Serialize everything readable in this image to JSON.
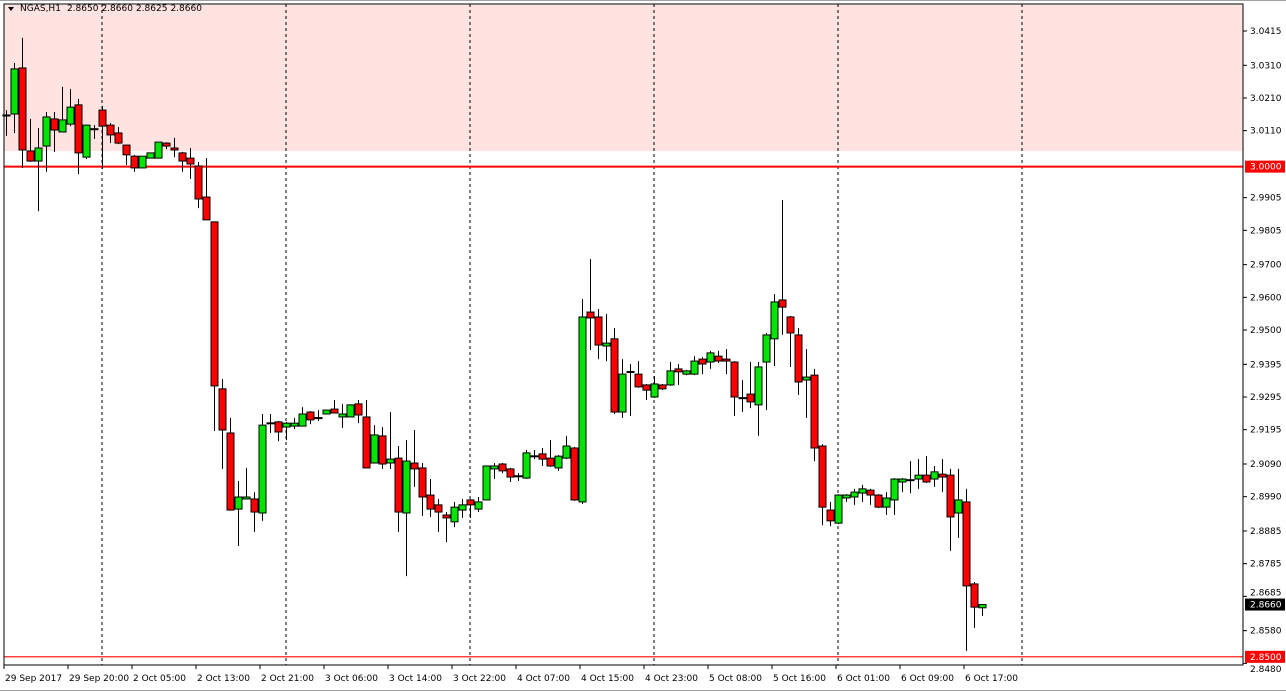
{
  "header": {
    "symbol": "NGAS,H1",
    "open": "2.8650",
    "high": "2.8660",
    "low": "2.8625",
    "close": "2.8660",
    "menu_icon": "triangle-down-icon"
  },
  "colors": {
    "up": "#00e600",
    "down": "#ff0000",
    "zone": "#ffe3e1",
    "level_line": "#ff0000",
    "current_price_bg": "#000000"
  },
  "chart_data": {
    "type": "candlestick",
    "ylim": [
      2.847,
      3.0495
    ],
    "zone": {
      "from": 3.0048,
      "to": 3.0495
    },
    "levels": [
      {
        "price": 3.0,
        "label": "3.0000"
      },
      {
        "price": 2.85,
        "label": "2.8500"
      }
    ],
    "current_price": {
      "price": 2.866,
      "label": "2.8660"
    },
    "y_ticks": [
      "3.0415",
      "3.0310",
      "3.0210",
      "3.0110",
      "2.9905",
      "2.9805",
      "2.9700",
      "2.9600",
      "2.9500",
      "2.9395",
      "2.9295",
      "2.9195",
      "2.9090",
      "2.8990",
      "2.8885",
      "2.8785",
      "2.8685",
      "2.8580",
      "2.8480"
    ],
    "x_labels": [
      {
        "index": 0,
        "label": "29 Sep 2017"
      },
      {
        "index": 8,
        "label": "29 Sep 20:00"
      },
      {
        "index": 16,
        "label": "2 Oct 05:00"
      },
      {
        "index": 24,
        "label": "2 Oct 13:00"
      },
      {
        "index": 32,
        "label": "2 Oct 21:00"
      },
      {
        "index": 40,
        "label": "3 Oct 06:00"
      },
      {
        "index": 48,
        "label": "3 Oct 14:00"
      },
      {
        "index": 56,
        "label": "3 Oct 22:00"
      },
      {
        "index": 64,
        "label": "4 Oct 07:00"
      },
      {
        "index": 72,
        "label": "4 Oct 15:00"
      },
      {
        "index": 80,
        "label": "4 Oct 23:00"
      },
      {
        "index": 88,
        "label": "5 Oct 08:00"
      },
      {
        "index": 96,
        "label": "5 Oct 16:00"
      },
      {
        "index": 104,
        "label": "6 Oct 01:00"
      },
      {
        "index": 112,
        "label": "6 Oct 09:00"
      },
      {
        "index": 120,
        "label": "6 Oct 17:00"
      }
    ],
    "separators": [
      12,
      35,
      58,
      81,
      104,
      127
    ],
    "ohlc": [
      [
        3.0155,
        3.0173,
        3.0094,
        3.0158
      ],
      [
        3.0161,
        3.0317,
        3.0103,
        3.0299
      ],
      [
        3.0302,
        3.0394,
        2.9996,
        3.0051
      ],
      [
        3.0048,
        3.0146,
        3.0014,
        3.0017
      ],
      [
        3.0017,
        3.0118,
        2.9864,
        3.0057
      ],
      [
        3.0063,
        3.0167,
        2.9984,
        3.0152
      ],
      [
        3.0146,
        3.0167,
        3.0045,
        3.0112
      ],
      [
        3.0106,
        3.0244,
        3.0106,
        3.0143
      ],
      [
        3.013,
        3.0238,
        3.0124,
        3.0182
      ],
      [
        3.0189,
        3.0207,
        2.9977,
        3.0042
      ],
      [
        3.0029,
        3.0127,
        3.0023,
        3.0127
      ],
      [
        3.0115,
        3.0127,
        3.0085,
        3.0116
      ],
      [
        3.0173,
        3.0185,
        2.9993,
        3.0124
      ],
      [
        3.0127,
        3.0133,
        3.0072,
        3.0097
      ],
      [
        3.0103,
        3.0121,
        3.0069,
        3.0072
      ],
      [
        3.0066,
        3.0066,
        3.0005,
        3.0036
      ],
      [
        3.0032,
        3.0036,
        2.9984,
        2.9996
      ],
      [
        2.9996,
        3.0032,
        2.9996,
        3.0032
      ],
      [
        3.0026,
        3.0042,
        3.0026,
        3.0042
      ],
      [
        3.0026,
        3.0075,
        3.0026,
        3.0075
      ],
      [
        3.0072,
        3.0075,
        3.0054,
        3.0063
      ],
      [
        3.0057,
        3.0088,
        3.0029,
        3.0051
      ],
      [
        3.0042,
        3.0045,
        2.9984,
        3.0017
      ],
      [
        3.0026,
        3.0057,
        2.9962,
        3.0008
      ],
      [
        3.0002,
        3.0014,
        2.9873,
        2.9901
      ],
      [
        2.9907,
        3.0026,
        2.9837,
        2.9837
      ],
      [
        2.9831,
        2.9831,
        2.9191,
        2.9329
      ],
      [
        2.932,
        2.935,
        2.9075,
        2.9194
      ],
      [
        2.9185,
        2.9231,
        2.8949,
        2.8949
      ],
      [
        2.8952,
        2.9038,
        2.8839,
        2.8989
      ],
      [
        2.8983,
        2.9078,
        2.8983,
        2.8989
      ],
      [
        2.8983,
        2.9004,
        2.8882,
        2.8943
      ],
      [
        2.894,
        2.9243,
        2.8916,
        2.9209
      ],
      [
        2.9215,
        2.9243,
        2.9185,
        2.9216
      ],
      [
        2.9219,
        2.9222,
        2.916,
        2.9188
      ],
      [
        2.9203,
        2.9219,
        2.9163,
        2.9215
      ],
      [
        2.9206,
        2.9231,
        2.9197,
        2.9215
      ],
      [
        2.9206,
        2.9264,
        2.9206,
        2.9243
      ],
      [
        2.9249,
        2.9252,
        2.9212,
        2.9225
      ],
      [
        2.9231,
        2.9255,
        2.9222,
        2.9232
      ],
      [
        2.9243,
        2.9255,
        2.9243,
        2.9255
      ],
      [
        2.9258,
        2.9286,
        2.9246,
        2.9246
      ],
      [
        2.9234,
        2.9274,
        2.92,
        2.9243
      ],
      [
        2.9234,
        2.9271,
        2.9234,
        2.9271
      ],
      [
        2.9274,
        2.9286,
        2.9215,
        2.924
      ],
      [
        2.9234,
        2.9286,
        2.9078,
        2.9078
      ],
      [
        2.9093,
        2.9209,
        2.9093,
        2.9179
      ],
      [
        2.9176,
        2.9203,
        2.9075,
        2.909
      ],
      [
        2.9093,
        2.9249,
        2.9075,
        2.9105
      ],
      [
        2.9108,
        2.9145,
        2.8882,
        2.8943
      ],
      [
        2.894,
        2.9163,
        2.8747,
        2.9099
      ],
      [
        2.9093,
        2.9194,
        2.902,
        2.9075
      ],
      [
        2.9078,
        2.9093,
        2.8931,
        2.8989
      ],
      [
        2.8995,
        2.9044,
        2.8928,
        2.8952
      ],
      [
        2.8965,
        2.8983,
        2.8882,
        2.8943
      ],
      [
        2.8934,
        2.8943,
        2.8851,
        2.8925
      ],
      [
        2.8913,
        2.8974,
        2.8897,
        2.8958
      ],
      [
        2.8949,
        2.8983,
        2.8925,
        2.8965
      ],
      [
        2.898,
        2.8983,
        2.8925,
        2.8965
      ],
      [
        2.8952,
        2.8989,
        2.8943,
        2.8974
      ],
      [
        2.898,
        2.9084,
        2.898,
        2.9084
      ],
      [
        2.9075,
        2.9093,
        2.9044,
        2.9084
      ],
      [
        2.909,
        2.9093,
        2.9062,
        2.9069
      ],
      [
        2.9075,
        2.9078,
        2.9035,
        2.905
      ],
      [
        2.9053,
        2.9062,
        2.9038,
        2.9054
      ],
      [
        2.9047,
        2.9133,
        2.9044,
        2.9124
      ],
      [
        2.9114,
        2.9133,
        2.9105,
        2.9115
      ],
      [
        2.9121,
        2.9139,
        2.9084,
        2.9105
      ],
      [
        2.9108,
        2.9163,
        2.9081,
        2.9084
      ],
      [
        2.9078,
        2.9117,
        2.9069,
        2.9114
      ],
      [
        2.9108,
        2.9176,
        2.9105,
        2.9145
      ],
      [
        2.9139,
        2.9142,
        2.8977,
        2.898
      ],
      [
        2.8974,
        2.9595,
        2.8968,
        2.954
      ],
      [
        2.9555,
        2.9717,
        2.9439,
        2.9537
      ],
      [
        2.954,
        2.9564,
        2.9411,
        2.9454
      ],
      [
        2.9451,
        2.9549,
        2.9405,
        2.946
      ],
      [
        2.9473,
        2.9506,
        2.9243,
        2.9249
      ],
      [
        2.9249,
        2.9411,
        2.9231,
        2.9365
      ],
      [
        2.9372,
        2.9396,
        2.9237,
        2.9373
      ],
      [
        2.9365,
        2.9405,
        2.9323,
        2.9326
      ],
      [
        2.9332,
        2.9335,
        2.9286,
        2.9316
      ],
      [
        2.9295,
        2.9359,
        2.9292,
        2.9335
      ],
      [
        2.9332,
        2.9335,
        2.9316,
        2.932
      ],
      [
        2.9332,
        2.9402,
        2.9329,
        2.9375
      ],
      [
        2.9381,
        2.9396,
        2.9332,
        2.9372
      ],
      [
        2.9365,
        2.9378,
        2.9362,
        2.9375
      ],
      [
        2.9365,
        2.942,
        2.9362,
        2.9405
      ],
      [
        2.9411,
        2.9417,
        2.9365,
        2.9396
      ],
      [
        2.9402,
        2.9436,
        2.9381,
        2.943
      ],
      [
        2.942,
        2.9436,
        2.9399,
        2.9405
      ],
      [
        2.9411,
        2.9442,
        2.9365,
        2.9405
      ],
      [
        2.9402,
        2.9405,
        2.9237,
        2.9295
      ],
      [
        2.9292,
        2.9347,
        2.9249,
        2.9293
      ],
      [
        2.9304,
        2.9402,
        2.9261,
        2.928
      ],
      [
        2.9271,
        2.9402,
        2.9176,
        2.9387
      ],
      [
        2.9402,
        2.9491,
        2.9255,
        2.9485
      ],
      [
        2.9473,
        2.961,
        2.939,
        2.9586
      ],
      [
        2.9592,
        2.9898,
        2.9485,
        2.957
      ],
      [
        2.954,
        2.9543,
        2.9387,
        2.9491
      ],
      [
        2.9485,
        2.9506,
        2.9301,
        2.9341
      ],
      [
        2.9347,
        2.9442,
        2.9231,
        2.9356
      ],
      [
        2.9362,
        2.9381,
        2.9099,
        2.9139
      ],
      [
        2.9145,
        2.9151,
        2.8903,
        2.8958
      ],
      [
        2.8949,
        2.8974,
        2.89,
        2.8916
      ],
      [
        2.8909,
        2.8998,
        2.8906,
        2.8995
      ],
      [
        2.8986,
        2.8998,
        2.8974,
        2.8995
      ],
      [
        2.8989,
        2.9014,
        2.8965,
        2.9004
      ],
      [
        2.9001,
        2.9026,
        2.8974,
        2.9014
      ],
      [
        2.901,
        2.9014,
        2.8965,
        2.8995
      ],
      [
        2.8995,
        2.8998,
        2.8955,
        2.8958
      ],
      [
        2.8958,
        2.9004,
        2.8934,
        2.8986
      ],
      [
        2.898,
        2.9047,
        2.8934,
        2.9044
      ],
      [
        2.9035,
        2.9047,
        2.9004,
        2.9044
      ],
      [
        2.9041,
        2.9099,
        2.9001,
        2.9042
      ],
      [
        2.9044,
        2.9105,
        2.9014,
        2.9056
      ],
      [
        2.9056,
        2.9114,
        2.9032,
        2.9035
      ],
      [
        2.9044,
        2.9084,
        2.902,
        2.9066
      ],
      [
        2.9059,
        2.9105,
        2.9004,
        2.905
      ],
      [
        2.9056,
        2.9075,
        2.8824,
        2.8928
      ],
      [
        2.894,
        2.9075,
        2.8864,
        2.898
      ],
      [
        2.8974,
        2.9014,
        2.8518,
        2.8717
      ],
      [
        2.8723,
        2.8729,
        2.8588,
        2.8652
      ],
      [
        2.865,
        2.866,
        2.8625,
        2.866
      ]
    ]
  }
}
